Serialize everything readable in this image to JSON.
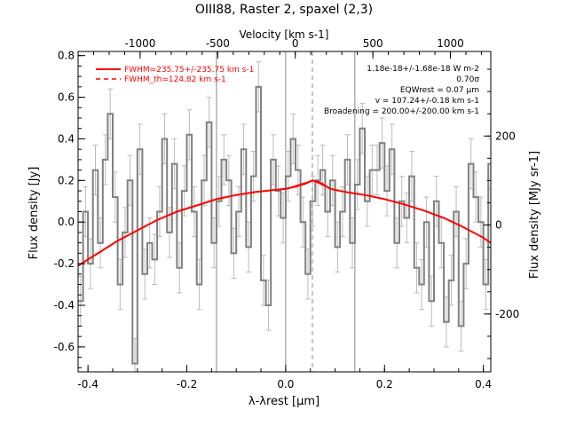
{
  "chart_data": {
    "type": "line",
    "title": "OIII88, Raster 2, spaxel (2,3)",
    "xlabel": "λ-λrest [μm]",
    "ylabel": "Flux density [Jy]",
    "top_xlabel": "Velocity [km s-1]",
    "right_ylabel": "Flux density [MJy sr-1]",
    "xlim": [
      -0.42,
      0.415
    ],
    "ylim": [
      -0.72,
      0.82
    ],
    "top_xlim": [
      -1400,
      1260
    ],
    "right_ylim": [
      -330,
      390
    ],
    "x_ticks": [
      -0.4,
      -0.2,
      0.0,
      0.2,
      0.4
    ],
    "x_tick_labels": [
      "-0.4",
      "-0.2",
      "0.0",
      "0.2",
      "0.4"
    ],
    "y_ticks": [
      -0.6,
      -0.4,
      -0.2,
      0.0,
      0.2,
      0.4,
      0.6,
      0.8
    ],
    "y_tick_labels": [
      "-0.6",
      "-0.4",
      "-0.2",
      "0.0",
      "0.2",
      "0.4",
      "0.6",
      "0.8"
    ],
    "top_ticks": [
      -1000,
      -500,
      0,
      500,
      1000
    ],
    "top_tick_labels": [
      "-1000",
      "-500",
      "0",
      "500",
      "1000"
    ],
    "right_ticks": [
      -200,
      0,
      200
    ],
    "right_tick_labels": [
      "-200",
      "0",
      "200"
    ],
    "vertical_lines": [
      {
        "x": -0.14,
        "style": "solid"
      },
      {
        "x": 0.0,
        "style": "solid"
      },
      {
        "x": 0.054,
        "style": "dashed"
      },
      {
        "x": 0.14,
        "style": "solid"
      }
    ],
    "legend": {
      "placement": "top-left",
      "entries": [
        {
          "label": "FWHM=235.75+/-235.75 km s-1",
          "style": "solid"
        },
        {
          "label": "FWHM_th=124.82 km s-1",
          "style": "dashed"
        }
      ]
    },
    "annotations": [
      "1.18e-18+/-1.68e-18 W m-2",
      "0.70σ",
      "EQWrest = 0.07 μm",
      "v = 107.24+/-0.18 km s-1",
      "Broadening = 200.00+/-200.00 km s-1"
    ],
    "series": [
      {
        "kind": "spectrum-steps",
        "x": [
          -0.42,
          -0.41,
          -0.4,
          -0.39,
          -0.38,
          -0.37,
          -0.36,
          -0.35,
          -0.34,
          -0.33,
          -0.32,
          -0.31,
          -0.3,
          -0.29,
          -0.28,
          -0.27,
          -0.26,
          -0.25,
          -0.24,
          -0.23,
          -0.22,
          -0.21,
          -0.2,
          -0.19,
          -0.18,
          -0.17,
          -0.16,
          -0.15,
          -0.14,
          -0.13,
          -0.12,
          -0.11,
          -0.1,
          -0.09,
          -0.08,
          -0.07,
          -0.06,
          -0.05,
          -0.04,
          -0.03,
          -0.02,
          -0.01,
          0.0,
          0.01,
          0.02,
          0.03,
          0.04,
          0.05,
          0.06,
          0.07,
          0.08,
          0.09,
          0.1,
          0.11,
          0.12,
          0.13,
          0.14,
          0.15,
          0.16,
          0.17,
          0.18,
          0.19,
          0.2,
          0.21,
          0.22,
          0.23,
          0.24,
          0.25,
          0.26,
          0.27,
          0.28,
          0.29,
          0.3,
          0.31,
          0.32,
          0.33,
          0.34,
          0.35,
          0.36,
          0.37,
          0.38,
          0.39,
          0.4,
          0.41
        ],
        "values": [
          -0.38,
          0.05,
          -0.2,
          0.25,
          -0.1,
          0.3,
          0.52,
          0.12,
          -0.3,
          -0.05,
          0.2,
          -0.68,
          0.35,
          -0.25,
          -0.1,
          -0.18,
          0.05,
          0.4,
          -0.05,
          0.28,
          -0.22,
          0.15,
          0.42,
          0.05,
          -0.3,
          0.2,
          0.48,
          -0.1,
          0.1,
          0.3,
          0.2,
          -0.15,
          0.05,
          0.35,
          -0.12,
          0.22,
          0.65,
          -0.28,
          -0.4,
          0.3,
          0.15,
          0.02,
          0.22,
          0.4,
          0.25,
          0.0,
          -0.25,
          0.1,
          0.2,
          0.25,
          0.05,
          0.2,
          -0.12,
          0.05,
          0.3,
          -0.1,
          0.18,
          0.45,
          0.1,
          0.25,
          0.25,
          0.38,
          0.15,
          0.35,
          -0.1,
          0.1,
          0.02,
          0.22,
          -0.22,
          -0.3,
          0.0,
          -0.38,
          0.1,
          -0.1,
          -0.48,
          -0.28,
          0.05,
          -0.5,
          -0.2,
          0.28,
          0.12,
          0.0,
          -0.3,
          0.28
        ],
        "error": 0.12
      },
      {
        "kind": "fit",
        "x": [
          -0.42,
          -0.38,
          -0.34,
          -0.3,
          -0.26,
          -0.22,
          -0.18,
          -0.14,
          -0.1,
          -0.06,
          -0.02,
          0.0,
          0.02,
          0.04,
          0.054,
          0.07,
          0.09,
          0.12,
          0.16,
          0.2,
          0.24,
          0.28,
          0.32,
          0.36,
          0.4,
          0.415
        ],
        "values": [
          -0.21,
          -0.15,
          -0.09,
          -0.04,
          0.01,
          0.05,
          0.08,
          0.11,
          0.13,
          0.145,
          0.155,
          0.16,
          0.17,
          0.185,
          0.2,
          0.19,
          0.16,
          0.145,
          0.13,
          0.11,
          0.085,
          0.055,
          0.02,
          -0.025,
          -0.075,
          -0.1
        ]
      }
    ]
  }
}
